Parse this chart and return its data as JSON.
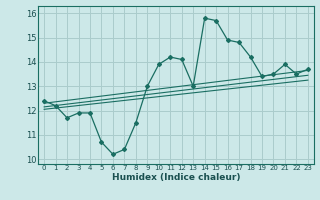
{
  "xlabel": "Humidex (Indice chaleur)",
  "ylabel": "",
  "bg_color": "#cce8e8",
  "grid_color": "#aacccc",
  "line_color": "#1a6e62",
  "xlim": [
    -0.5,
    23.5
  ],
  "ylim": [
    9.8,
    16.3
  ],
  "xticks": [
    0,
    1,
    2,
    3,
    4,
    5,
    6,
    7,
    8,
    9,
    10,
    11,
    12,
    13,
    14,
    15,
    16,
    17,
    18,
    19,
    20,
    21,
    22,
    23
  ],
  "yticks": [
    10,
    11,
    12,
    13,
    14,
    15,
    16
  ],
  "main_x": [
    0,
    1,
    2,
    3,
    4,
    5,
    6,
    7,
    8,
    9,
    10,
    11,
    12,
    13,
    14,
    15,
    16,
    17,
    18,
    19,
    20,
    21,
    22,
    23
  ],
  "main_y": [
    12.4,
    12.2,
    11.7,
    11.9,
    11.9,
    10.7,
    10.2,
    10.4,
    11.5,
    13.0,
    13.9,
    14.2,
    14.1,
    13.0,
    15.8,
    15.7,
    14.9,
    14.8,
    14.2,
    13.4,
    13.5,
    13.9,
    13.5,
    13.7
  ],
  "trend1_x": [
    0,
    23
  ],
  "trend1_y": [
    12.05,
    13.25
  ],
  "trend2_x": [
    0,
    23
  ],
  "trend2_y": [
    12.15,
    13.45
  ],
  "trend3_x": [
    0,
    23
  ],
  "trend3_y": [
    12.3,
    13.65
  ]
}
